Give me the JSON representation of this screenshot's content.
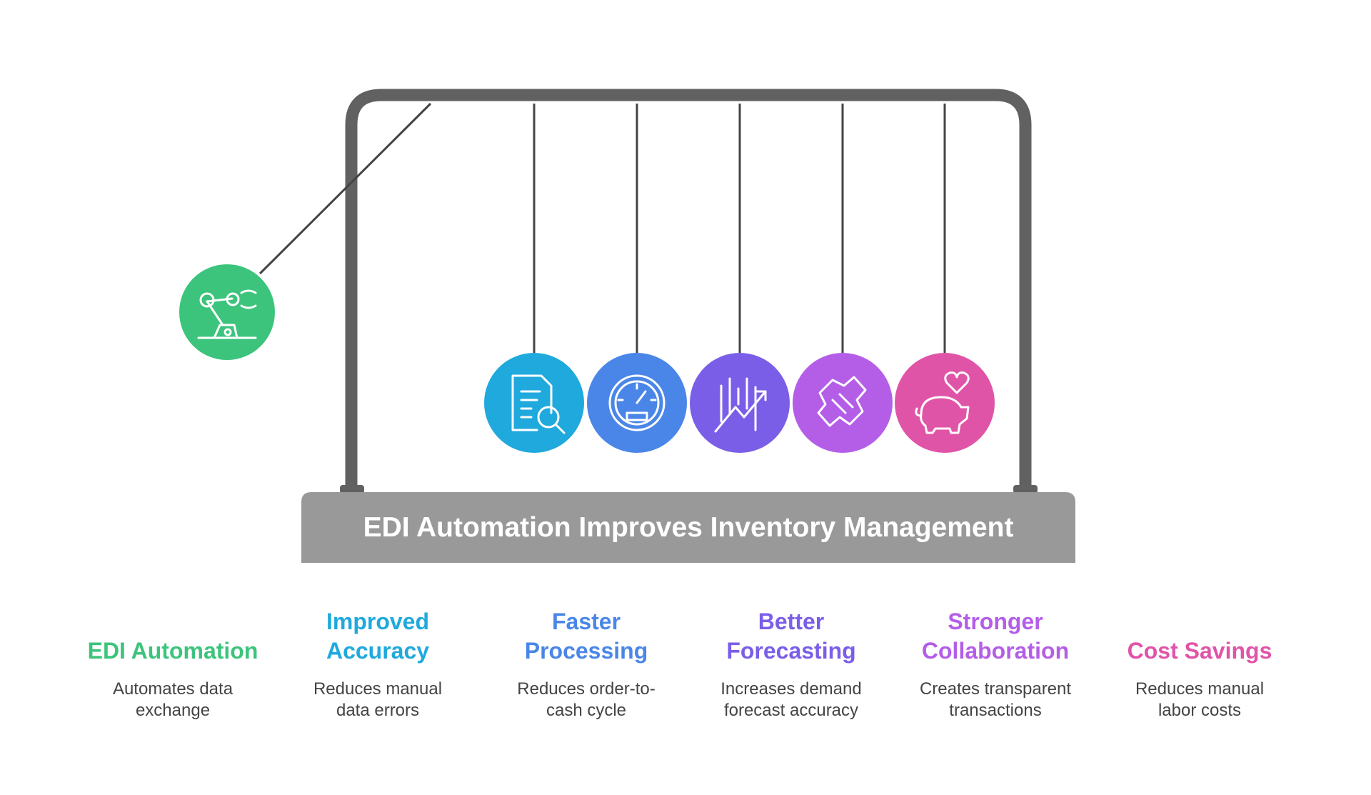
{
  "header": {
    "title": "EDI Automation Improves Inventory Management"
  },
  "items": [
    {
      "title": "EDI Automation",
      "description": "Automates data exchange"
    },
    {
      "title": "Improved Accuracy",
      "description": "Reduces manual data errors"
    },
    {
      "title": "Faster Processing",
      "description": "Reduces order-to-cash cycle"
    },
    {
      "title": "Better Forecasting",
      "description": "Increases demand forecast accuracy"
    },
    {
      "title": "Stronger Collaboration",
      "description": "Creates transparent transactions"
    },
    {
      "title": "Cost Savings",
      "description": "Reduces manual labor costs"
    }
  ]
}
